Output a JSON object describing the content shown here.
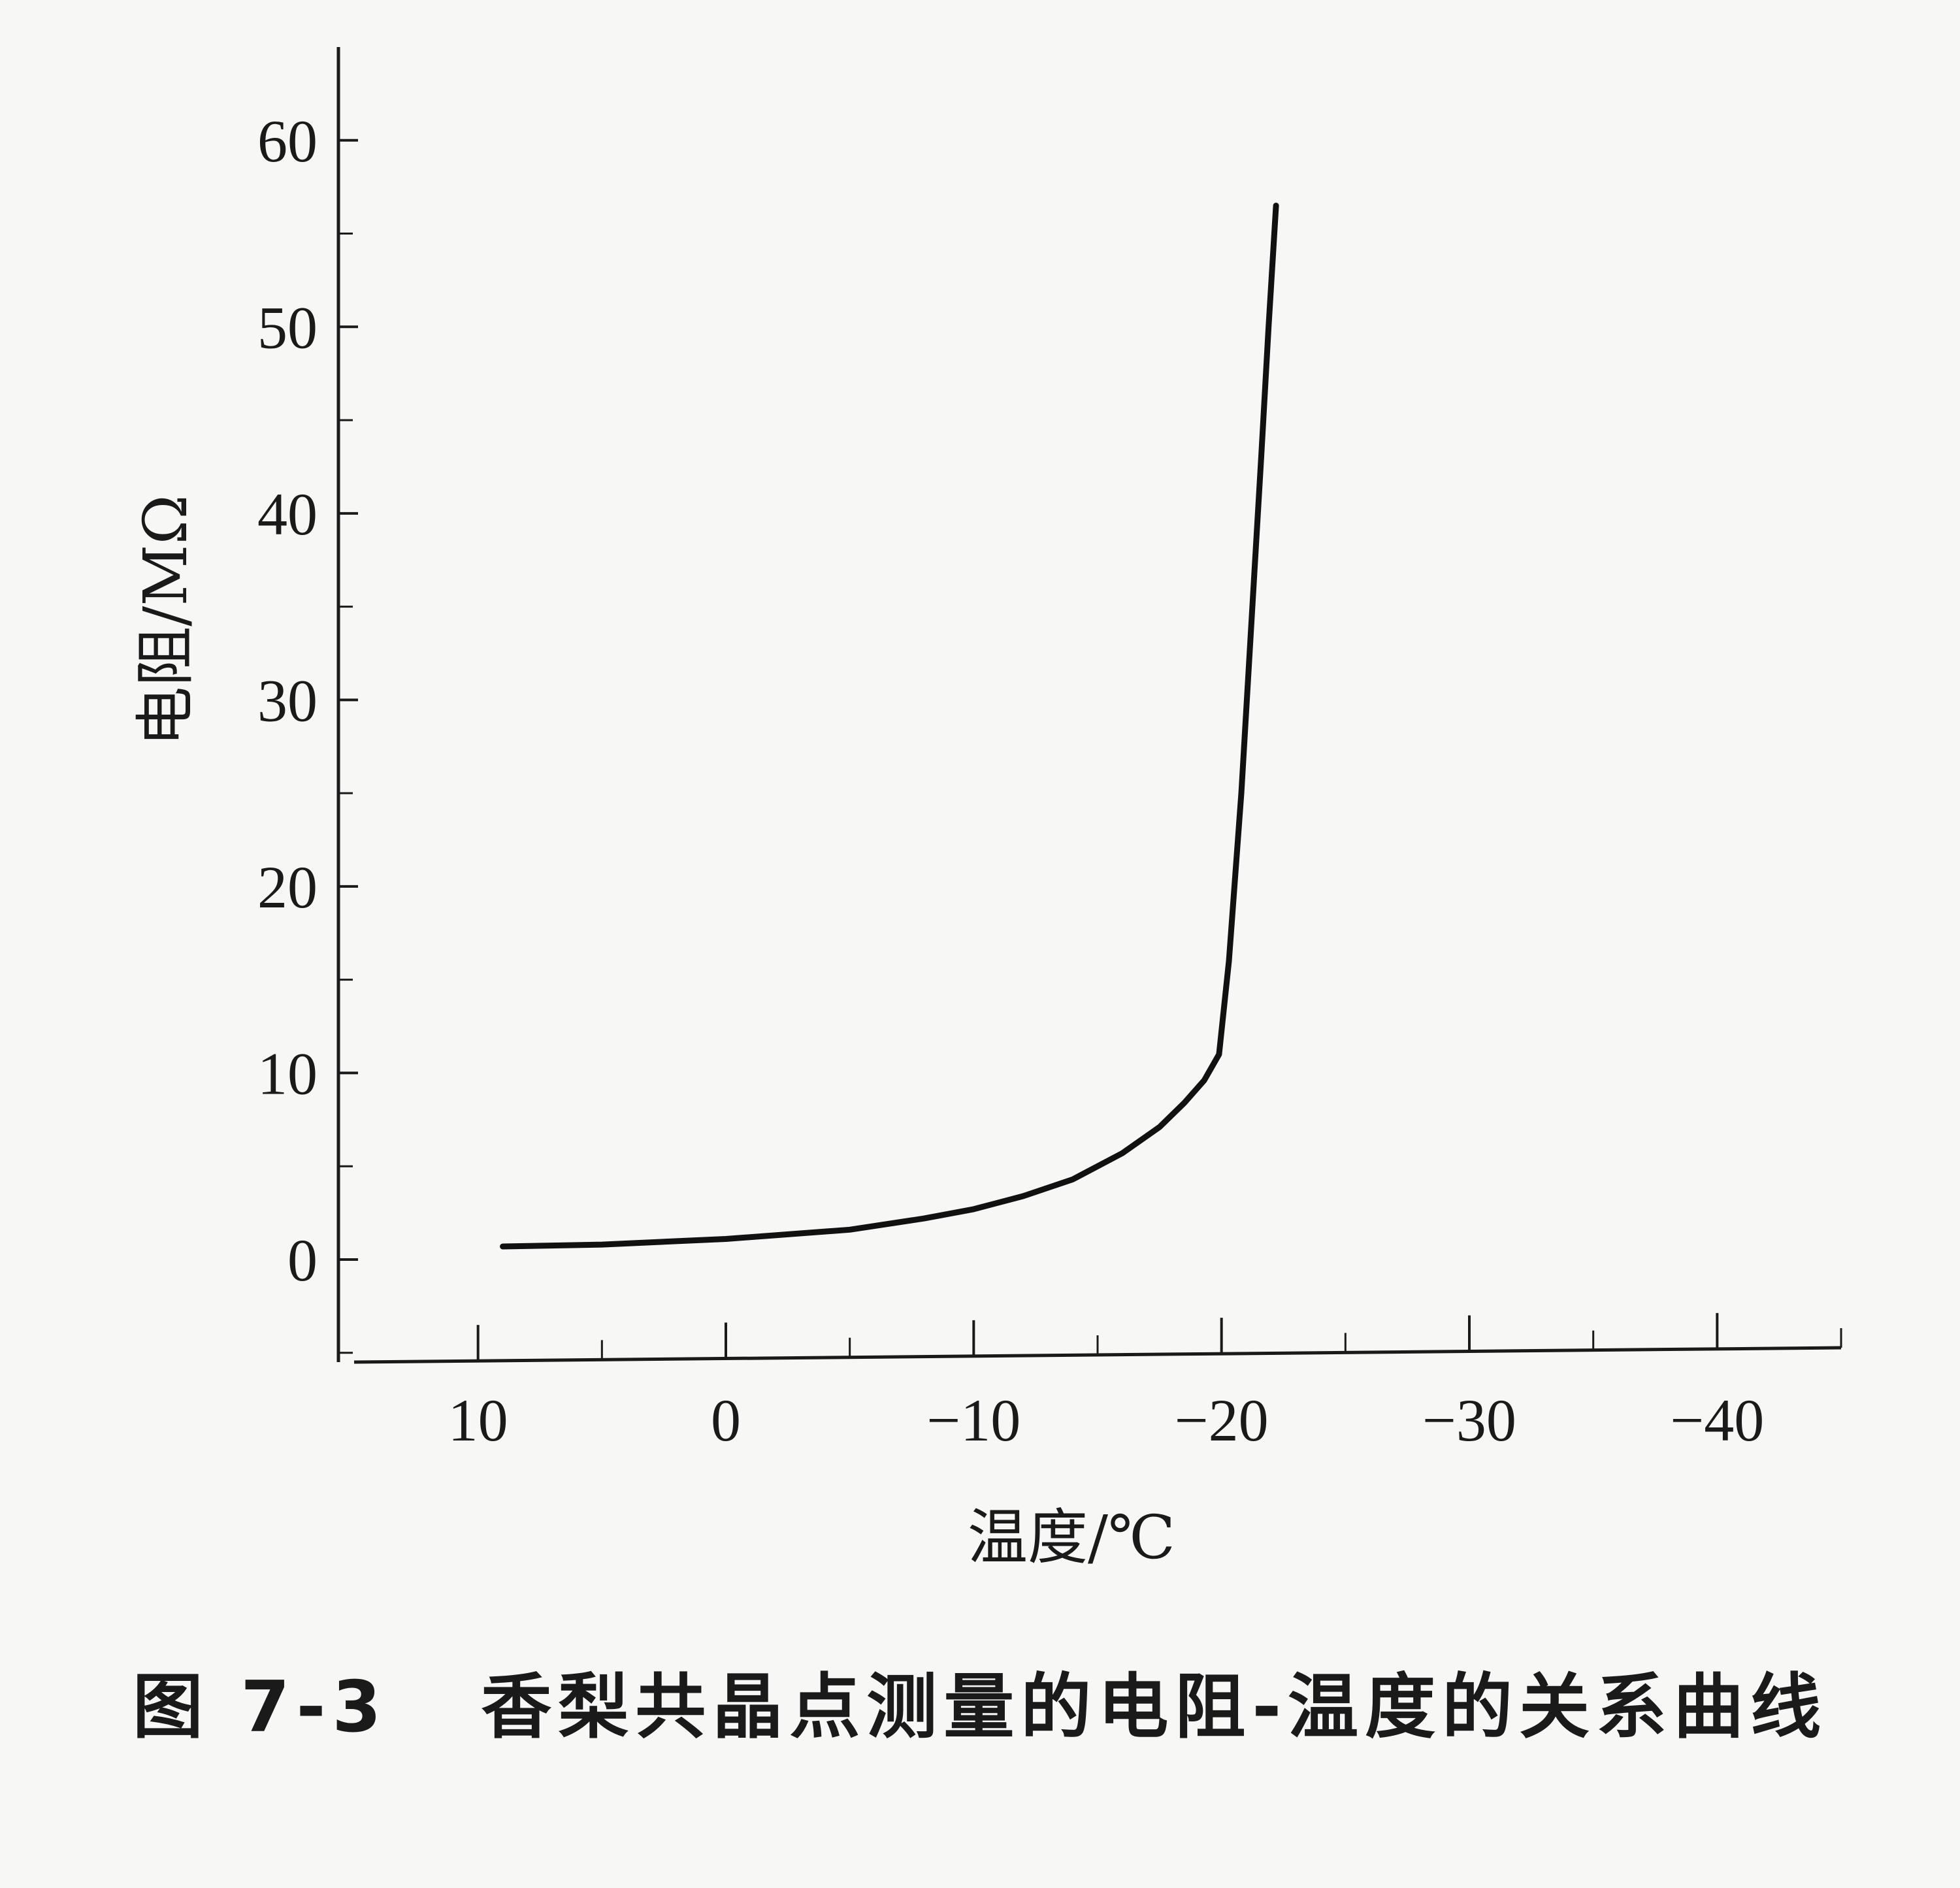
{
  "chart_data": {
    "type": "line",
    "xlabel": "温度/℃",
    "ylabel": "电阻/MΩ",
    "caption": "图 7-3   香梨共晶点测量的电阻-温度的关系曲线",
    "xlim": [
      15,
      -45
    ],
    "ylim": [
      -5.5,
      65
    ],
    "x_ticks": [
      10,
      0,
      -10,
      -20,
      -30,
      -40
    ],
    "x_tick_labels": [
      "10",
      "0",
      "−10",
      "−20",
      "−30",
      "−40"
    ],
    "y_ticks": [
      0,
      10,
      20,
      30,
      40,
      50,
      60
    ],
    "y_tick_labels": [
      "0",
      "10",
      "20",
      "30",
      "40",
      "50",
      "60"
    ],
    "grid": false,
    "series": [
      {
        "x": [
          9.0,
          5,
          0,
          -5,
          -8,
          -10,
          -12,
          -14,
          -16,
          -17.5,
          -18.5,
          -19.3,
          -19.9,
          -20.3,
          -20.8,
          -21.2,
          -21.6,
          -21.9,
          -22.2
        ],
        "y": [
          0.7,
          0.8,
          1.1,
          1.6,
          2.2,
          2.7,
          3.4,
          4.3,
          5.7,
          7.1,
          8.4,
          9.6,
          11,
          16,
          25,
          34,
          43,
          50,
          56.5
        ]
      }
    ],
    "color": "#111111"
  }
}
